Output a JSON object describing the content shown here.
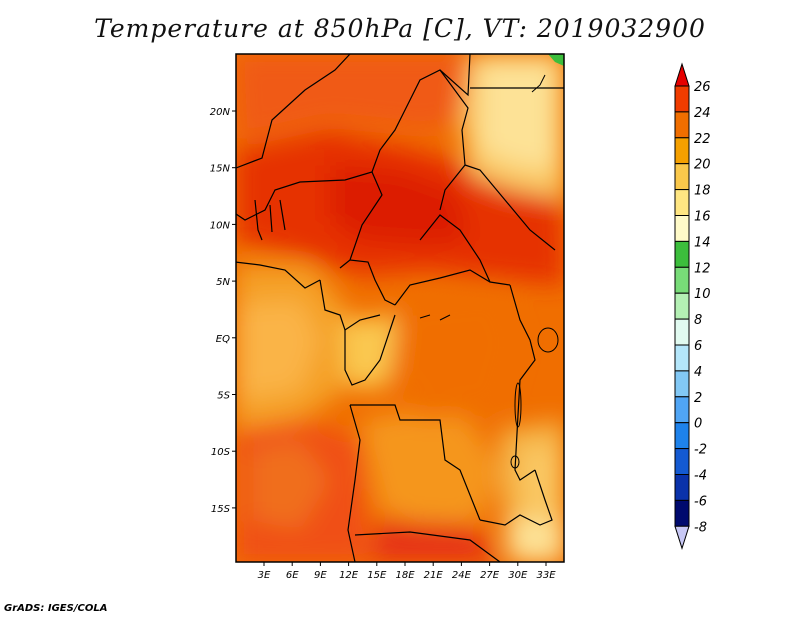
{
  "title": "Temperature at 850hPa [C], VT: 2019032900",
  "credit": "GrADS: IGES/COLA",
  "map": {
    "lat_labels": [
      "20N",
      "15N",
      "10N",
      "5N",
      "EQ",
      "5S",
      "10S",
      "15S"
    ],
    "lon_labels": [
      "3E",
      "6E",
      "9E",
      "12E",
      "15E",
      "18E",
      "21E",
      "24E",
      "27E",
      "30E",
      "33E"
    ]
  },
  "colorbar": {
    "levels": [
      "26",
      "24",
      "22",
      "20",
      "18",
      "16",
      "14",
      "12",
      "10",
      "8",
      "6",
      "4",
      "2",
      "0",
      "-2",
      "-4",
      "-6",
      "-8"
    ],
    "colors": [
      "#e60000",
      "#f03c00",
      "#f06e00",
      "#f5a000",
      "#fac84b",
      "#ffe682",
      "#fffac8",
      "#3cbe3c",
      "#78dc78",
      "#b4f0b4",
      "#e1faf0",
      "#b4e6fa",
      "#82c8f5",
      "#50a5f5",
      "#1e82eb",
      "#145ad2",
      "#0a32aa",
      "#000a6e",
      "#c8c8f5"
    ]
  }
}
